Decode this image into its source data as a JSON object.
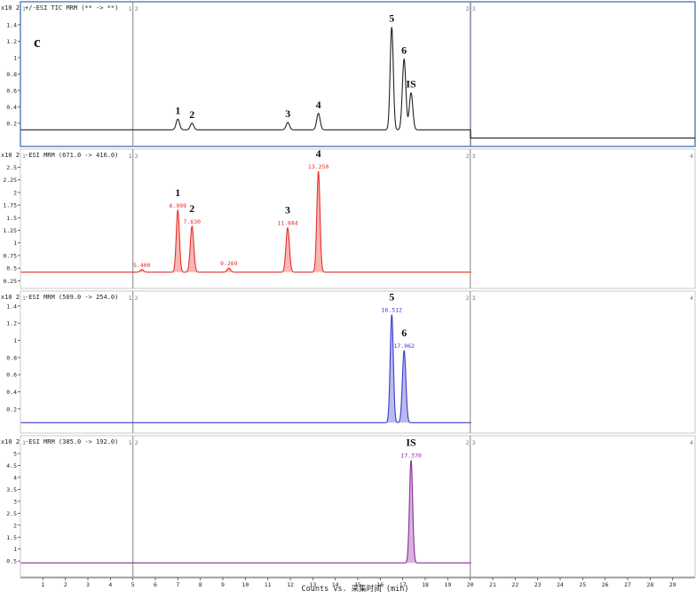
{
  "figure_label": "c",
  "chart_data": {
    "type": "line",
    "xlabel": "Counts vs. 采集时间 (min)",
    "xlim": [
      0,
      30
    ],
    "x_ticks": [
      "1",
      "2",
      "3",
      "4",
      "5",
      "6",
      "7",
      "8",
      "9",
      "10",
      "11",
      "12",
      "13",
      "14",
      "15",
      "16",
      "17",
      "18",
      "19",
      "20",
      "21",
      "22",
      "23",
      "24",
      "25",
      "26",
      "27",
      "28",
      "29"
    ],
    "panels": [
      {
        "title": "+/-ESI TIC MRM (** -> **)",
        "y_exponent": "x10 2",
        "color": "#222222",
        "ylim": [
          -0.05,
          1.55
        ],
        "y_ticks": [
          "0.2",
          "0.4",
          "0.6",
          "0.8",
          "1",
          "1.2",
          "1.4"
        ],
        "baseline": 0.12,
        "segment_labels": [
          "1",
          "1",
          "2",
          "2",
          "3"
        ],
        "peaks": [
          {
            "x": 7.0,
            "y": 0.25,
            "label": "1"
          },
          {
            "x": 7.63,
            "y": 0.2,
            "label": "2"
          },
          {
            "x": 11.89,
            "y": 0.21,
            "label": "3"
          },
          {
            "x": 13.25,
            "y": 0.32,
            "label": "4"
          },
          {
            "x": 16.51,
            "y": 1.37,
            "label": "5"
          },
          {
            "x": 17.06,
            "y": 0.98,
            "label": "6"
          },
          {
            "x": 17.37,
            "y": 0.57,
            "label": "IS"
          }
        ]
      },
      {
        "title": "-ESI MRM (671.0 -> 416.0)",
        "y_exponent": "x10 2",
        "color": "#e8302a",
        "ylim": [
          0.15,
          2.65
        ],
        "y_ticks": [
          "0.25",
          "0.5",
          "0.75",
          "1",
          "1.25",
          "1.5",
          "1.75",
          "2",
          "2.25",
          "2.5"
        ],
        "baseline": 0.42,
        "segment_labels": [
          "1",
          "1",
          "2",
          "2",
          "3",
          "4"
        ],
        "peaks": [
          {
            "x": 5.4,
            "y": 0.47,
            "rt": "5.400",
            "label": ""
          },
          {
            "x": 6.999,
            "y": 1.65,
            "rt": "6.999",
            "label": "1"
          },
          {
            "x": 7.63,
            "y": 1.33,
            "rt": "7.630",
            "label": "2"
          },
          {
            "x": 9.269,
            "y": 0.5,
            "rt": "9.269",
            "label": ""
          },
          {
            "x": 11.884,
            "y": 1.3,
            "rt": "11.884",
            "label": "3"
          },
          {
            "x": 13.25,
            "y": 2.42,
            "rt": "13.250",
            "label": "4"
          }
        ]
      },
      {
        "title": "-ESI MRM (509.0 -> 254.0)",
        "y_exponent": "x10 2",
        "color": "#3a3ad0",
        "ylim": [
          -0.05,
          1.45
        ],
        "y_ticks": [
          "0.2",
          "0.4",
          "0.6",
          "0.8",
          "1",
          "1.2",
          "1.4"
        ],
        "baseline": 0.04,
        "segment_labels": [
          "1",
          "1",
          "2",
          "2",
          "3",
          "4"
        ],
        "peaks": [
          {
            "x": 16.512,
            "y": 1.3,
            "rt": "16.512",
            "label": "5"
          },
          {
            "x": 17.062,
            "y": 0.88,
            "rt": "17.062",
            "label": "6"
          }
        ]
      },
      {
        "title": "-ESI MRM (385.0 -> 192.0)",
        "y_exponent": "x10 2",
        "color": "#8a2a9a",
        "ylim": [
          -0.05,
          5.3
        ],
        "y_ticks": [
          "0.5",
          "1",
          "1.5",
          "2",
          "2.5",
          "3",
          "3.5",
          "4",
          "4.5",
          "5"
        ],
        "baseline": 0.42,
        "segment_labels": [
          "1",
          "1",
          "2",
          "2",
          "3",
          "4"
        ],
        "peaks": [
          {
            "x": 17.37,
            "y": 4.72,
            "rt": "17.370",
            "label": "IS"
          }
        ]
      }
    ]
  }
}
